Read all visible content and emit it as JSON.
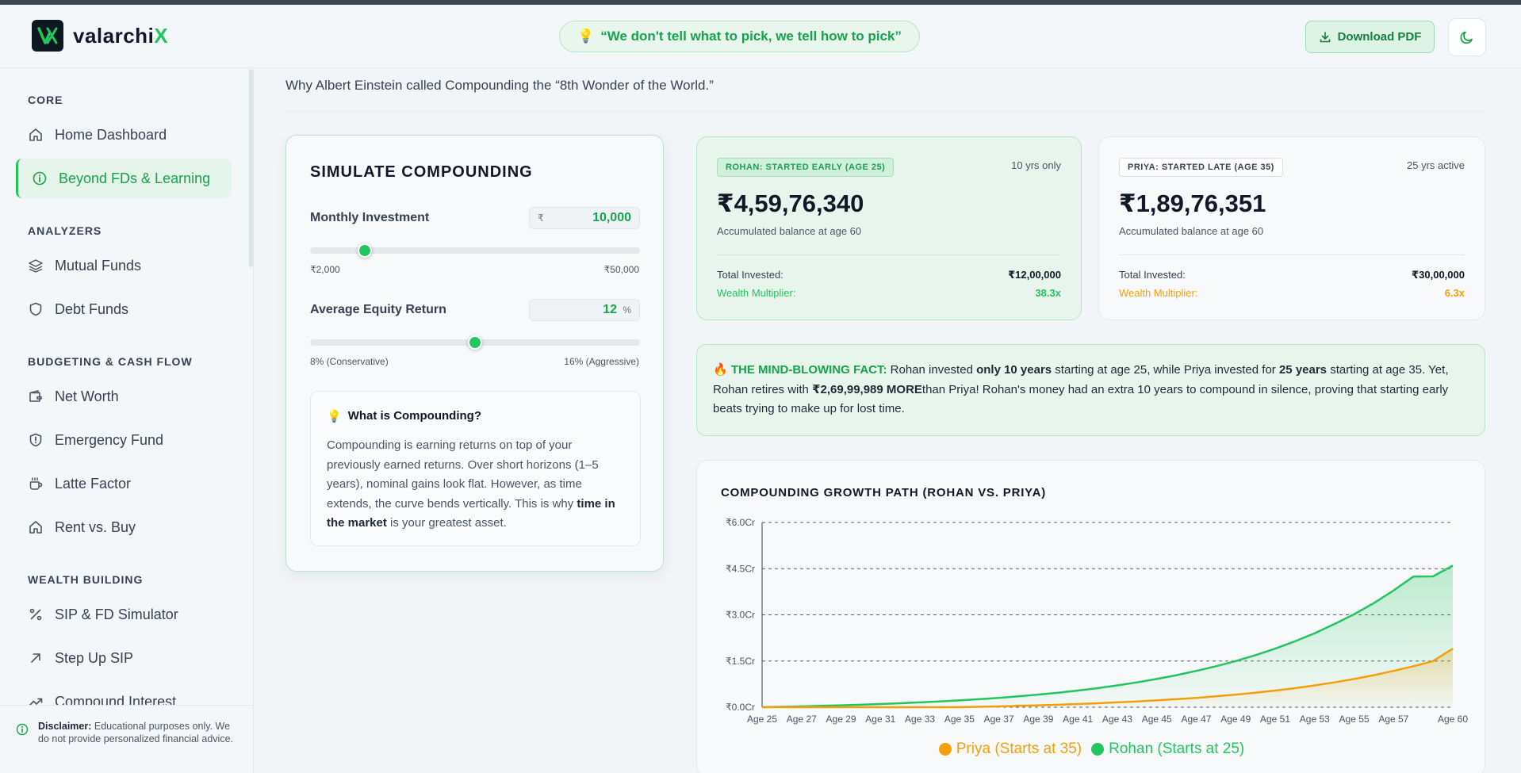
{
  "header": {
    "brand": "valarchi",
    "brand_accent": "X",
    "quote": "“We don't tell what to pick, we tell how to pick”",
    "download_label": "Download PDF"
  },
  "sidebar": {
    "sections": [
      {
        "title": "CORE",
        "items": [
          {
            "label": "Home Dashboard",
            "icon": "home-icon"
          },
          {
            "label": "Beyond FDs & Learning",
            "icon": "info-icon",
            "active": true
          }
        ]
      },
      {
        "title": "ANALYZERS",
        "items": [
          {
            "label": "Mutual Funds",
            "icon": "layers-icon"
          },
          {
            "label": "Debt Funds",
            "icon": "shield-icon"
          }
        ]
      },
      {
        "title": "BUDGETING & CASH FLOW",
        "items": [
          {
            "label": "Net Worth",
            "icon": "wallet-icon"
          },
          {
            "label": "Emergency Fund",
            "icon": "shield-alert-icon"
          },
          {
            "label": "Latte Factor",
            "icon": "coffee-icon"
          },
          {
            "label": "Rent vs. Buy",
            "icon": "home-icon"
          }
        ]
      },
      {
        "title": "WEALTH BUILDING",
        "items": [
          {
            "label": "SIP & FD Simulator",
            "icon": "percent-icon"
          },
          {
            "label": "Step Up SIP",
            "icon": "arrow-up-right-icon"
          },
          {
            "label": "Compound Interest",
            "icon": "trend-icon"
          }
        ]
      }
    ],
    "disclaimer_bold": "Disclaimer:",
    "disclaimer_text": " Educational purposes only. We do not provide personalized financial advice."
  },
  "main": {
    "subtitle": "Why Albert Einstein called Compounding the “8th Wonder of the World.”"
  },
  "simulator": {
    "title": "SIMULATE COMPOUNDING",
    "monthly": {
      "label": "Monthly Investment",
      "prefix": "₹",
      "value": "10,000",
      "min_label": "₹2,000",
      "max_label": "₹50,000",
      "min": 2000,
      "max": 50000,
      "current": 10000
    },
    "return": {
      "label": "Average Equity Return",
      "value": "12",
      "suffix": "%",
      "min_label": "8% (Conservative)",
      "max_label": "16% (Aggressive)",
      "min": 8,
      "max": 16,
      "current": 12
    },
    "what_title": "What is Compounding?",
    "what_body_1": "Compounding is earning returns on top of your previously earned returns. Over short horizons (1–5 years), nominal gains look flat. However, as time extends, the curve bends vertically. This is why ",
    "what_body_bold": "time in the market",
    "what_body_2": " is your greatest asset."
  },
  "rohan": {
    "badge": "ROHAN: STARTED EARLY (AGE 25)",
    "years": "10 yrs only",
    "balance": "₹4,59,76,340",
    "balance_label": "Accumulated balance at age 60",
    "invested_label": "Total Invested:",
    "invested_value": "₹12,00,000",
    "multiplier_label": "Wealth Multiplier:",
    "multiplier_value": "38.3x",
    "color": "#22c55e"
  },
  "priya": {
    "badge": "PRIYA: STARTED LATE (AGE 35)",
    "years": "25 yrs active",
    "balance": "₹1,89,76,351",
    "balance_label": "Accumulated balance at age 60",
    "invested_label": "Total Invested:",
    "invested_value": "₹30,00,000",
    "multiplier_label": "Wealth Multiplier:",
    "multiplier_value": "6.3x",
    "color": "#f59e0b"
  },
  "fact": {
    "heading": "THE MIND-BLOWING FACT:",
    "t1": " Rohan invested ",
    "b1": "only 10 years",
    "t2": " starting at age 25, while Priya invested for ",
    "b2": "25 years",
    "t3": " starting at age 35. Yet, Rohan retires with ",
    "b3": "₹2,69,99,989 MORE",
    "t4": "than Priya! Rohan's money had an extra 10 years to compound in silence, proving that starting early beats trying to make up for lost time."
  },
  "chart_data": {
    "type": "area",
    "title": "COMPOUNDING GROWTH PATH (ROHAN VS. PRIYA)",
    "x": [
      25,
      26,
      27,
      28,
      29,
      30,
      31,
      32,
      33,
      34,
      35,
      36,
      37,
      38,
      39,
      40,
      41,
      42,
      43,
      44,
      45,
      46,
      47,
      48,
      49,
      50,
      51,
      52,
      53,
      54,
      55,
      56,
      57,
      58,
      59,
      60
    ],
    "x_tick_labels": [
      "Age 25",
      "Age 27",
      "Age 29",
      "Age 31",
      "Age 33",
      "Age 35",
      "Age 37",
      "Age 39",
      "Age 41",
      "Age 43",
      "Age 45",
      "Age 47",
      "Age 49",
      "Age 51",
      "Age 53",
      "Age 55",
      "Age 57",
      "Age 60"
    ],
    "x_tick_values": [
      25,
      27,
      29,
      31,
      33,
      35,
      37,
      39,
      41,
      43,
      45,
      47,
      49,
      51,
      53,
      55,
      57,
      60
    ],
    "y_tick_labels": [
      "₹0.0Cr",
      "₹1.5Cr",
      "₹3.0Cr",
      "₹4.5Cr",
      "₹6.0Cr"
    ],
    "y_tick_values": [
      0,
      1.5,
      3.0,
      4.5,
      6.0
    ],
    "ylim": [
      0,
      6.0
    ],
    "y_unit": "Cr",
    "grid": true,
    "legend_position": "bottom",
    "series": [
      {
        "name": "Priya (Starts at 35)",
        "color": "#f59e0b",
        "values": [
          0,
          0,
          0,
          0,
          0,
          0,
          0,
          0,
          0,
          0,
          0,
          0.013,
          0.027,
          0.043,
          0.061,
          0.081,
          0.103,
          0.128,
          0.156,
          0.187,
          0.222,
          0.261,
          0.305,
          0.354,
          0.409,
          0.471,
          0.541,
          0.619,
          0.707,
          0.805,
          0.916,
          1.04,
          1.18,
          1.33,
          1.5,
          1.9
        ]
      },
      {
        "name": "Rohan (Starts at 25)",
        "color": "#22c55e",
        "values": [
          0,
          0.013,
          0.027,
          0.043,
          0.061,
          0.081,
          0.103,
          0.128,
          0.156,
          0.187,
          0.222,
          0.261,
          0.305,
          0.354,
          0.409,
          0.471,
          0.541,
          0.619,
          0.707,
          0.805,
          0.916,
          1.04,
          1.18,
          1.33,
          1.5,
          1.69,
          1.9,
          2.14,
          2.4,
          2.7,
          3.02,
          3.38,
          3.79,
          4.24,
          4.25,
          4.6
        ]
      }
    ]
  }
}
